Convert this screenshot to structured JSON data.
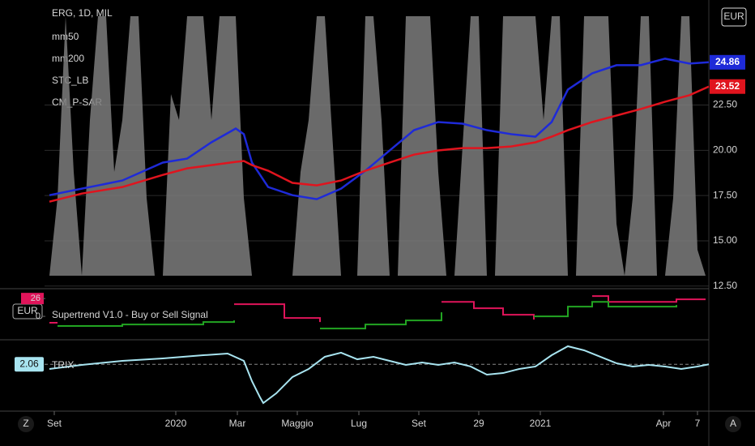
{
  "chart_data": [
    {
      "type": "line",
      "title": "ERG, 1D, MIL",
      "currency": "EUR",
      "x": [
        3,
        23,
        48,
        73,
        88,
        103,
        118,
        123,
        128,
        138,
        153,
        168,
        183,
        198,
        213,
        228,
        243,
        258,
        273,
        288,
        303,
        313,
        323,
        338,
        353,
        368,
        383,
        398,
        410
      ],
      "xlim": [
        0,
        410
      ],
      "xticks": [
        {
          "value": 6,
          "label": "Set"
        },
        {
          "value": 81,
          "label": "2020"
        },
        {
          "value": 119,
          "label": "Mar"
        },
        {
          "value": 156,
          "label": "Maggio"
        },
        {
          "value": 194,
          "label": "Lug"
        },
        {
          "value": 231,
          "label": "Set"
        },
        {
          "value": 268,
          "label": "29"
        },
        {
          "value": 306,
          "label": "2021"
        },
        {
          "value": 382,
          "label": "Apr"
        },
        {
          "value": 403,
          "label": "7"
        }
      ],
      "ylim": [
        12.4,
        28.3
      ],
      "yticks": [
        {
          "value": 12.5,
          "label": "12.50"
        },
        {
          "value": 15,
          "label": "15.00"
        },
        {
          "value": 17.5,
          "label": "17.50"
        },
        {
          "value": 20,
          "label": "20.00"
        },
        {
          "value": 22.5,
          "label": "22.50"
        }
      ],
      "grid": true,
      "series": [
        {
          "name": "mm50",
          "color": "#1e2ad8",
          "values": [
            17.52,
            17.88,
            18.33,
            19.32,
            19.54,
            20.44,
            21.2,
            20.89,
            19.32,
            17.97,
            17.52,
            17.3,
            17.88,
            18.87,
            19.99,
            21.11,
            21.56,
            21.47,
            21.11,
            20.89,
            20.75,
            21.56,
            23.35,
            24.25,
            24.7,
            24.7,
            25.06,
            24.79,
            24.86
          ]
        },
        {
          "name": "mm200",
          "color": "#e0141e",
          "values": [
            17.16,
            17.61,
            17.97,
            18.64,
            19.0,
            19.18,
            19.36,
            19.41,
            19.18,
            18.87,
            18.2,
            18.06,
            18.33,
            18.87,
            19.32,
            19.76,
            19.99,
            20.12,
            20.12,
            20.21,
            20.44,
            20.75,
            21.11,
            21.56,
            21.92,
            22.28,
            22.68,
            23.04,
            23.52
          ]
        }
      ],
      "stc": {
        "name": "STC_LB",
        "color": "#7d7d7d",
        "ylim": [
          0,
          100
        ],
        "x": [
          3,
          8,
          13,
          18,
          23,
          28,
          33,
          38,
          43,
          48,
          53,
          58,
          63,
          68,
          73,
          78,
          83,
          88,
          93,
          98,
          103,
          108,
          113,
          118,
          123,
          128,
          133,
          138,
          143,
          148,
          153,
          158,
          163,
          168,
          173,
          178,
          183,
          188,
          193,
          198,
          203,
          208,
          213,
          218,
          223,
          228,
          233,
          238,
          243,
          248,
          253,
          258,
          263,
          268,
          273,
          278,
          283,
          288,
          293,
          298,
          303,
          308,
          313,
          318,
          323,
          328,
          333,
          338,
          343,
          348,
          353,
          358,
          363,
          368,
          373,
          378,
          383,
          388,
          393,
          398,
          403,
          408
        ],
        "values": [
          0,
          30,
          100,
          40,
          0,
          60,
          100,
          100,
          40,
          60,
          100,
          100,
          30,
          0,
          0,
          70,
          60,
          100,
          100,
          100,
          60,
          100,
          100,
          100,
          30,
          0,
          0,
          0,
          0,
          0,
          0,
          40,
          60,
          100,
          100,
          50,
          0,
          0,
          0,
          100,
          100,
          60,
          0,
          0,
          100,
          100,
          100,
          100,
          40,
          0,
          0,
          50,
          100,
          100,
          0,
          0,
          100,
          100,
          100,
          100,
          100,
          60,
          100,
          100,
          0,
          0,
          100,
          100,
          100,
          100,
          20,
          0,
          30,
          100,
          100,
          0,
          0,
          30,
          100,
          100,
          10,
          0
        ]
      },
      "psar": {
        "name": "CM_P-SAR"
      }
    },
    {
      "type": "line",
      "title": "Supertrend V1.0 - Buy or Sell Signal",
      "currency": "EUR",
      "x": [
        3,
        8,
        48,
        98,
        117,
        148,
        170,
        198,
        223,
        245,
        265,
        283,
        302,
        323,
        338,
        348,
        390,
        408
      ],
      "ylim": [
        -33,
        38
      ],
      "yticks": [
        0,
        26
      ],
      "up": {
        "color": "#22a522",
        "values": [
          null,
          -14,
          -11.8,
          -8.3,
          -5.9,
          null,
          -17.7,
          -11.8,
          -5.9,
          5.9,
          null,
          null,
          0,
          14.2,
          21.2,
          14.2,
          16.5,
          null
        ]
      },
      "down": {
        "color": "#e0145a",
        "values": [
          -9.4,
          -9.4,
          null,
          null,
          17.7,
          -2.4,
          -8.3,
          null,
          null,
          21.2,
          11.8,
          2.4,
          -4.7,
          null,
          29.5,
          21.2,
          24.8,
          24.8
        ]
      }
    },
    {
      "type": "line",
      "title": "TRIX",
      "x": [
        3,
        23,
        48,
        73,
        98,
        113,
        123,
        128,
        133,
        135,
        143,
        153,
        163,
        173,
        183,
        193,
        203,
        213,
        223,
        233,
        243,
        253,
        263,
        273,
        283,
        293,
        303,
        313,
        323,
        333,
        343,
        353,
        363,
        373,
        383,
        393,
        403,
        410
      ],
      "ylim": [
        -4.5,
        5.5
      ],
      "series": [
        {
          "color": "#a8e4f0",
          "values": [
            1.38,
            1.97,
            2.56,
            2.91,
            3.38,
            3.62,
            2.56,
            -0.38,
            -2.74,
            -3.56,
            -2.15,
            0.21,
            1.38,
            3.15,
            3.74,
            2.79,
            3.15,
            2.56,
            1.97,
            2.32,
            1.97,
            2.32,
            1.74,
            0.56,
            0.79,
            1.38,
            1.74,
            3.38,
            4.68,
            4.09,
            3.15,
            2.21,
            1.74,
            1.97,
            1.74,
            1.38,
            1.74,
            2.06
          ]
        }
      ]
    }
  ],
  "ui": {
    "buttons": [
      "Z",
      "A"
    ]
  }
}
